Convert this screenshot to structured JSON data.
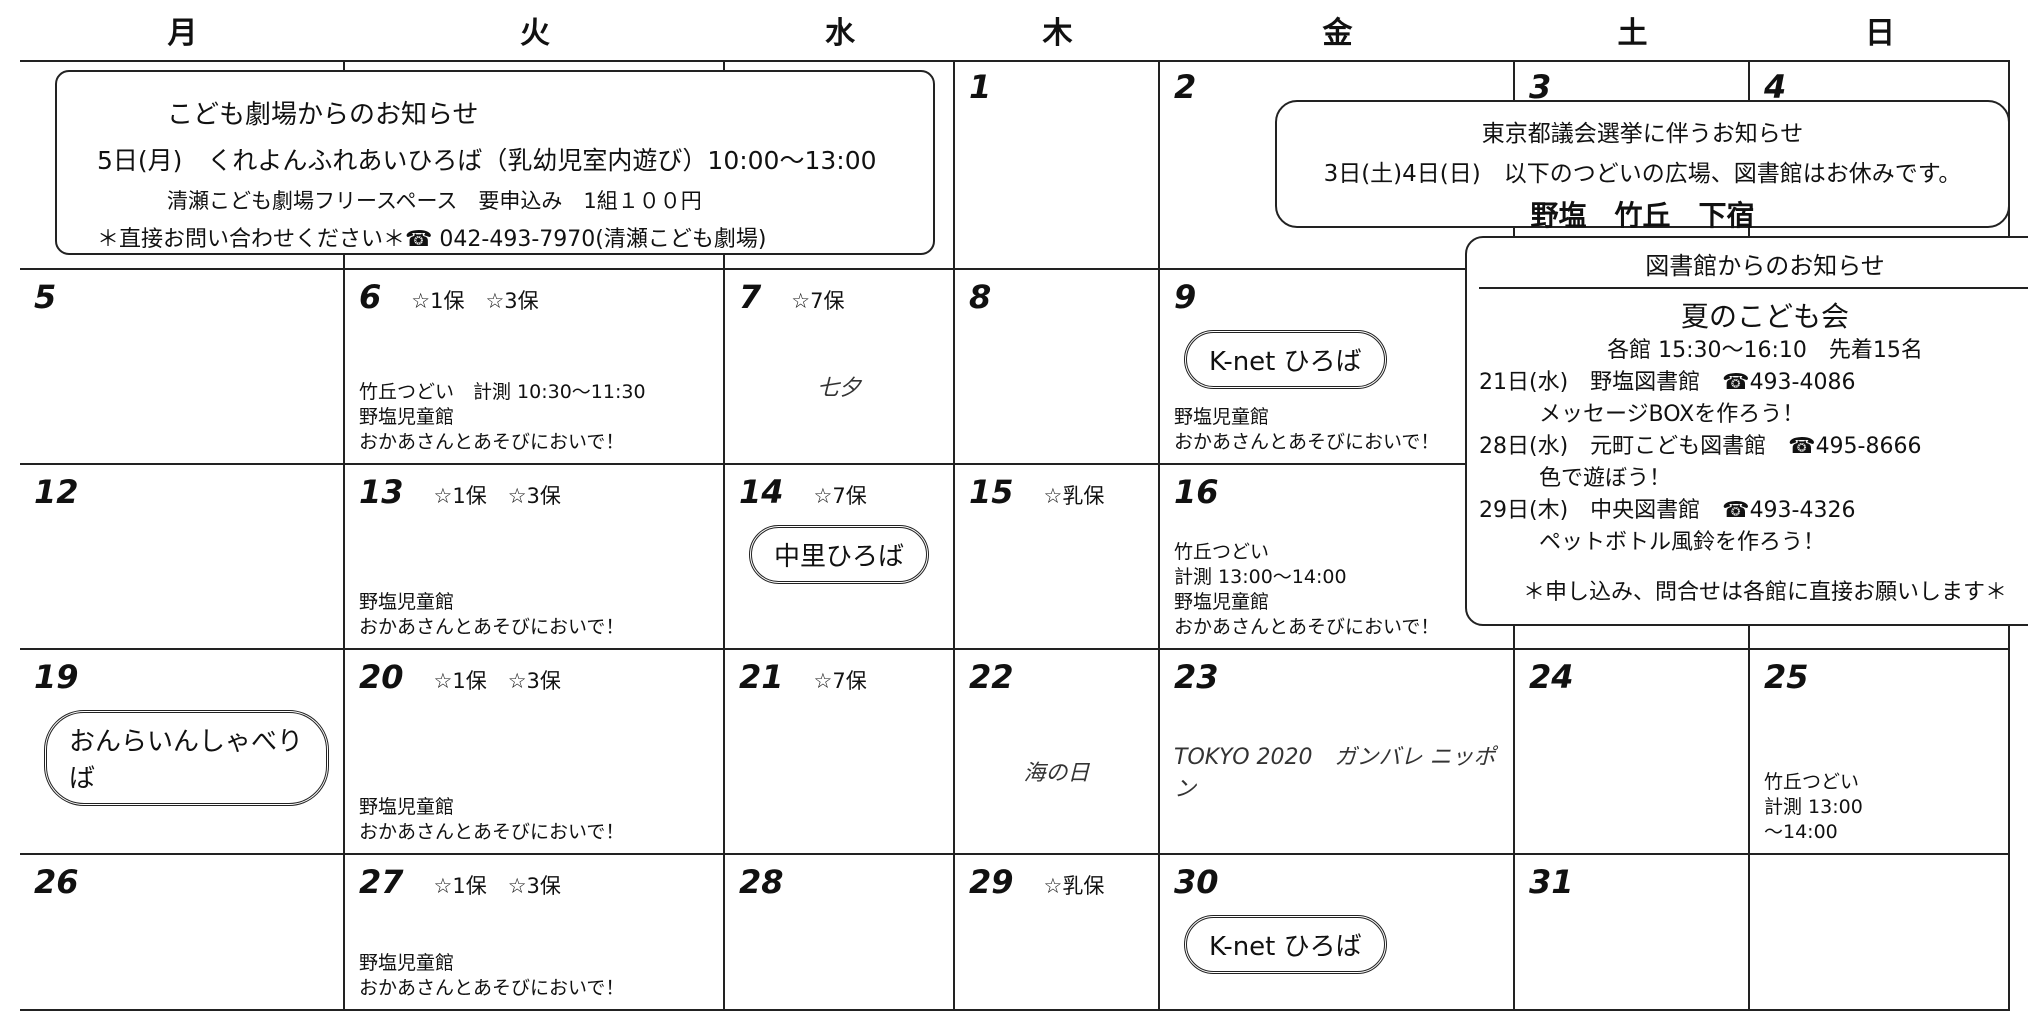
{
  "header": {
    "days": [
      "月",
      "火",
      "水",
      "木",
      "金",
      "土",
      "日"
    ]
  },
  "weeks": [
    [
      null,
      null,
      null,
      {
        "day": "1"
      },
      {
        "day": "2"
      },
      {
        "day": "3"
      },
      {
        "day": "4"
      }
    ],
    [
      {
        "day": "5"
      },
      {
        "day": "6",
        "tags": "☆1保　☆3保",
        "lines": [
          "竹丘つどい　計測 10:30～11:30",
          "野塩児童館",
          "おかあさんとあそびにおいで！"
        ]
      },
      {
        "day": "7",
        "tags": "☆7保",
        "doodle": "七夕"
      },
      {
        "day": "8"
      },
      {
        "day": "9",
        "badge": "K-net ひろば",
        "lines": [
          "野塩児童館",
          "おかあさんとあそびにおいで！"
        ]
      },
      null,
      null
    ],
    [
      {
        "day": "12"
      },
      {
        "day": "13",
        "tags": "☆1保　☆3保",
        "lines": [
          "野塩児童館",
          "おかあさんとあそびにおいで！"
        ]
      },
      {
        "day": "14",
        "tags": "☆7保",
        "badge": "中里ひろば"
      },
      {
        "day": "15",
        "tags": "☆乳保"
      },
      {
        "day": "16",
        "lines": [
          "竹丘つどい",
          "計測 13:00～14:00",
          "野塩児童館",
          "おかあさんとあそびにおいで！"
        ]
      },
      null,
      null
    ],
    [
      {
        "day": "19",
        "badge": "おんらいんしゃべりば"
      },
      {
        "day": "20",
        "tags": "☆1保　☆3保",
        "lines": [
          "野塩児童館",
          "おかあさんとあそびにおいで！"
        ]
      },
      {
        "day": "21",
        "tags": "☆7保"
      },
      {
        "day": "22",
        "doodle": "海の日"
      },
      {
        "day": "23",
        "doodle": "TOKYO 2020　ガンバレ ニッポン"
      },
      {
        "day": "24"
      },
      {
        "day": "25",
        "lines": [
          "竹丘つどい",
          "計測 13:00",
          "～14:00"
        ]
      }
    ],
    [
      {
        "day": "26"
      },
      {
        "day": "27",
        "tags": "☆1保　☆3保",
        "lines": [
          "野塩児童館",
          "おかあさんとあそびにおいで！"
        ]
      },
      {
        "day": "28"
      },
      {
        "day": "29",
        "tags": "☆乳保"
      },
      {
        "day": "30",
        "badge": "K-net ひろば"
      },
      {
        "day": "31"
      },
      null
    ]
  ],
  "theater": {
    "title": "こども劇場からのお知らせ",
    "lines": [
      "5日(月)　くれよんふれあいひろば（乳幼児室内遊び）10:00～13:00",
      "清瀬こども劇場フリースペース　要申込み　1組１００円",
      "＊直接お問い合わせください＊☎ 042-493-7970(清瀬こども劇場)"
    ]
  },
  "election": {
    "title": "東京都議会選挙に伴うお知らせ",
    "lines": [
      "3日(土)4日(日)　以下のつどいの広場、図書館はお休みです。",
      "野塩　竹丘　下宿"
    ]
  },
  "library": {
    "title": "図書館からのお知らせ",
    "subtitle": "夏のこども会",
    "lines": [
      "各館 15:30～16:10　先着15名",
      "21日(水)　野塩図書館　☎493-4086",
      "メッセージBOXを作ろう！",
      "28日(水)　元町こども図書館　☎495-8666",
      "色で遊ぼう！",
      "29日(木)　中央図書館　☎493-4326",
      "ペットボトル風鈴を作ろう！",
      "＊申し込み、問合せは各館に直接お願いします＊"
    ]
  }
}
